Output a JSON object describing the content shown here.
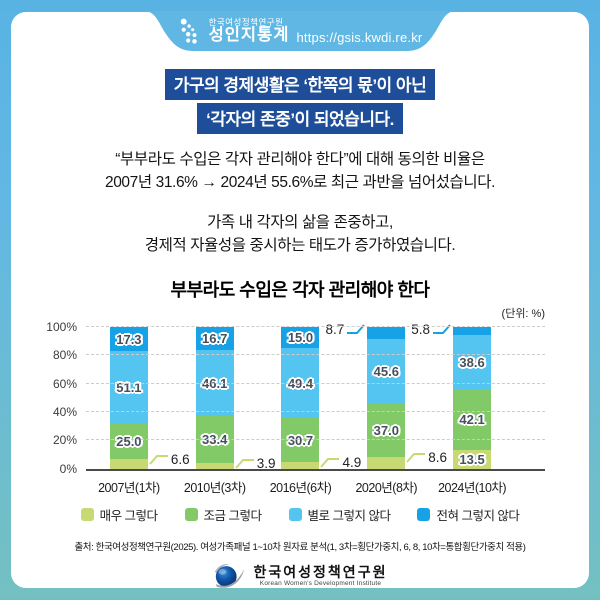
{
  "header": {
    "org_small": "한국여성정책연구원",
    "service_name": "성인지통계",
    "url": "https://gsis.kwdi.re.kr"
  },
  "headline": {
    "line1": "가구의 경제생활은 ‘한쪽의 몫’이 아닌",
    "line2": "‘각자의 존중’이 되었습니다."
  },
  "intro": {
    "p1_line1": "“부부라도 수입은 각자 관리해야 한다”에 대해 동의한 비율은",
    "p1_line2": "2007년 31.6% → 2024년 55.6%로 최근 과반을 넘어섰습니다.",
    "p2_line1": "가족 내 각자의 삶을 존중하고,",
    "p2_line2": "경제적 자율성을 중시하는 태도가 증가하였습니다."
  },
  "chart": {
    "title": "부부라도 수입은 각자 관리해야 한다",
    "unit_label": "(단위: %)"
  },
  "chart_data": {
    "type": "bar",
    "stacked": true,
    "title": "부부라도 수입은 각자 관리해야 한다",
    "unit": "%",
    "categories": [
      "2007년(1차)",
      "2010년(3차)",
      "2016년(6차)",
      "2020년(8차)",
      "2024년(10차)"
    ],
    "series": [
      {
        "name": "매우 그렇다",
        "color": "#c6d973",
        "values": [
          6.6,
          3.9,
          4.9,
          8.6,
          13.5
        ]
      },
      {
        "name": "조금 그렇다",
        "color": "#82c968",
        "values": [
          25.0,
          33.4,
          30.7,
          37.0,
          42.1
        ]
      },
      {
        "name": "별로 그렇지 않다",
        "color": "#54c4f1",
        "values": [
          51.1,
          46.1,
          49.4,
          45.6,
          38.6
        ]
      },
      {
        "name": "전혀 그렇지 않다",
        "color": "#17a2e8",
        "values": [
          17.3,
          16.7,
          15.0,
          8.7,
          5.8
        ]
      }
    ],
    "ylim": [
      0,
      100
    ],
    "yticks": [
      "0%",
      "20%",
      "40%",
      "60%",
      "80%",
      "100%"
    ],
    "grid": "dashed-horizontal",
    "legend_position": "bottom"
  },
  "source": "출처: 한국여성정책연구원(2025). 여성가족패널 1~10차 원자료 분석(1, 3차=횡단가중치, 6, 8, 10차=통합횡단가중치 적용)",
  "footer": {
    "org_kr": "한국여성정책연구원",
    "org_en": "Korean Women's Development Institute"
  },
  "colors": {
    "frame_top": "#58b3e3",
    "frame_bottom": "#74c0c1",
    "headline_bg": "#1e4e99",
    "tab_bg": "#60b7e3"
  }
}
